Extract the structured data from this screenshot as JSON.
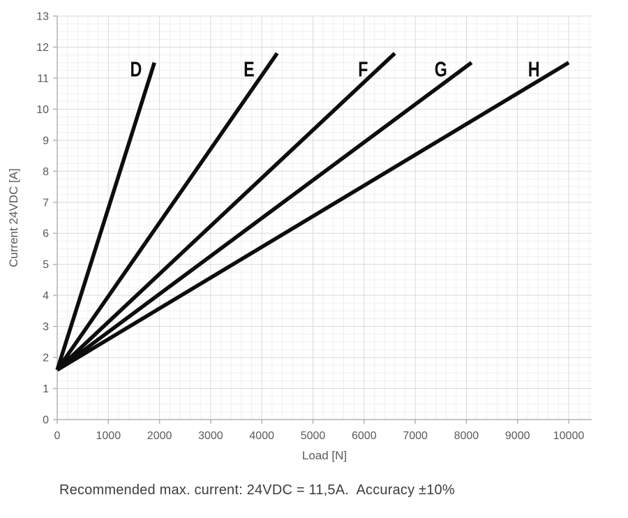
{
  "caption": "Recommended max. current: 24VDC = 11,5A.  Accuracy ±10%",
  "colors": {
    "line": "#0d0d0d",
    "series_label": "#0d0d0d",
    "grid_major": "#d9d9d9",
    "grid_minor": "#f0f0f0",
    "axis": "#b3b3b3",
    "tick_label": "#595959",
    "axis_title": "#595959",
    "caption_text": "#3d3d3d",
    "background": "#ffffff"
  },
  "chart_data": {
    "type": "line",
    "title": "",
    "xlabel": "Load [N]",
    "ylabel": "Current 24VDC [A]",
    "xlim": [
      0,
      10450
    ],
    "ylim": [
      0,
      13
    ],
    "x_ticks": [
      0,
      1000,
      2000,
      3000,
      4000,
      5000,
      6000,
      7000,
      8000,
      9000,
      10000
    ],
    "y_ticks": [
      0,
      1,
      2,
      3,
      4,
      5,
      6,
      7,
      8,
      9,
      10,
      11,
      12,
      13
    ],
    "x_minor_step": 200,
    "y_minor_step": 0.25,
    "grid": true,
    "legend_position": "inline-labels",
    "series": [
      {
        "name": "D",
        "x": [
          0,
          1900
        ],
        "y": [
          1.6,
          11.5
        ],
        "label_pos": {
          "x": 1540,
          "y": 11.3
        }
      },
      {
        "name": "E",
        "x": [
          0,
          4300
        ],
        "y": [
          1.6,
          11.8
        ],
        "label_pos": {
          "x": 3750,
          "y": 11.3
        }
      },
      {
        "name": "F",
        "x": [
          0,
          6600
        ],
        "y": [
          1.6,
          11.8
        ],
        "label_pos": {
          "x": 5980,
          "y": 11.3
        }
      },
      {
        "name": "G",
        "x": [
          0,
          8100
        ],
        "y": [
          1.6,
          11.5
        ],
        "label_pos": {
          "x": 7500,
          "y": 11.3
        }
      },
      {
        "name": "H",
        "x": [
          0,
          10000
        ],
        "y": [
          1.6,
          11.5
        ],
        "label_pos": {
          "x": 9320,
          "y": 11.3
        }
      }
    ]
  }
}
